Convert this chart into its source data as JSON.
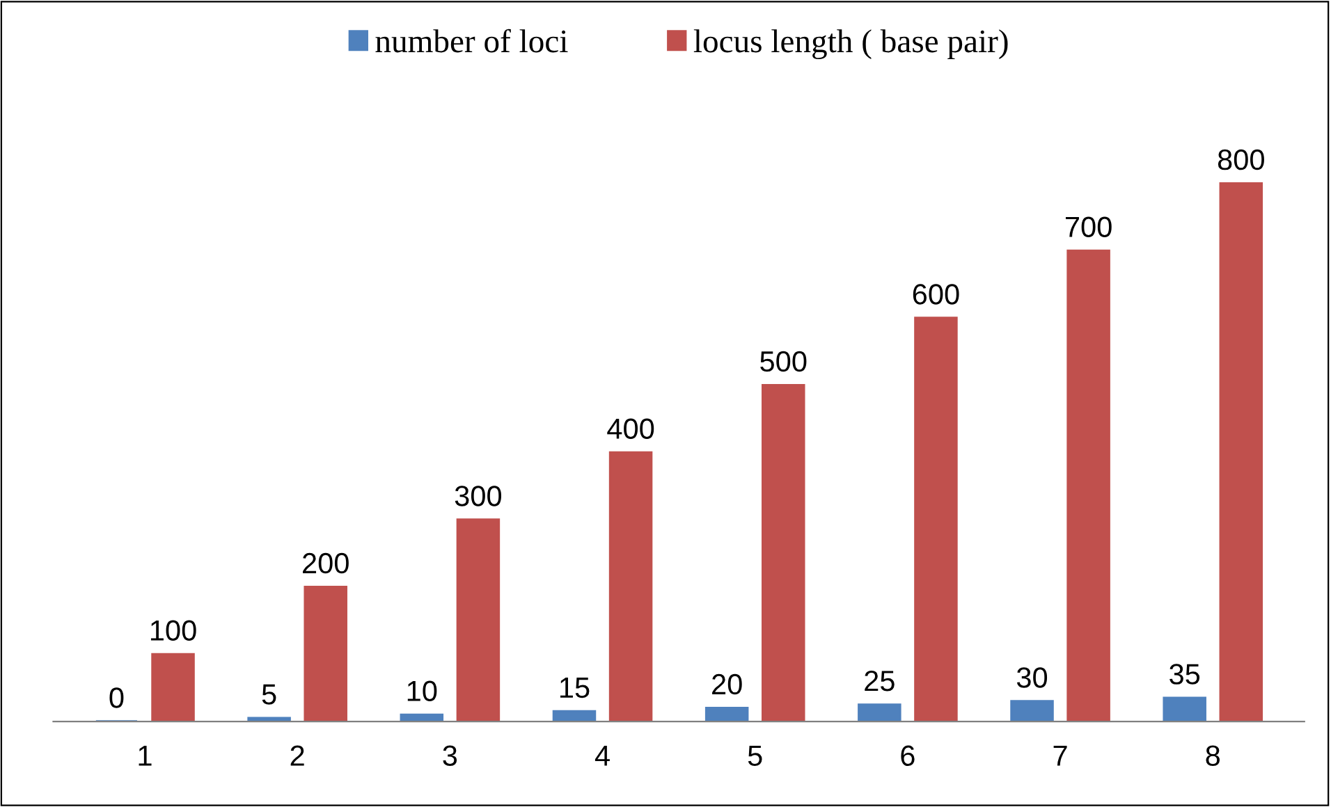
{
  "chart_data": {
    "type": "bar",
    "categories": [
      "1",
      "2",
      "3",
      "4",
      "5",
      "6",
      "7",
      "8"
    ],
    "series": [
      {
        "name": "number of loci",
        "color": "#4f81bd",
        "values": [
          0,
          5,
          10,
          15,
          20,
          25,
          30,
          35
        ]
      },
      {
        "name": "locus length ( base pair)",
        "color": "#c0504d",
        "values": [
          100,
          200,
          300,
          400,
          500,
          600,
          700,
          800
        ]
      }
    ],
    "data_labels": true,
    "legend": "top",
    "grid": false,
    "tick_labels": "x"
  }
}
